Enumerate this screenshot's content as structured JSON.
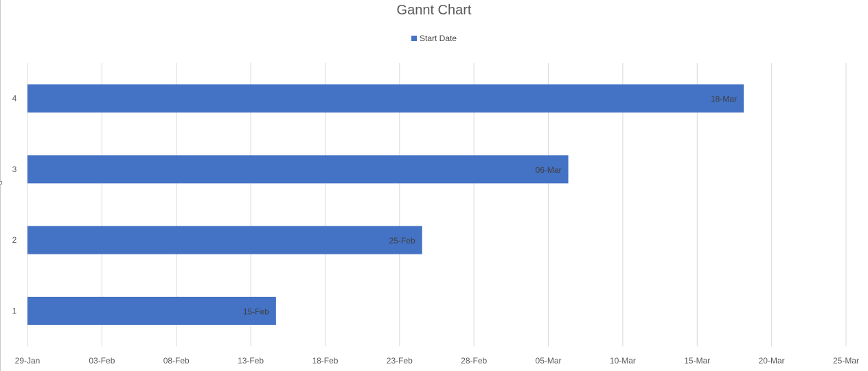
{
  "chart_data": {
    "type": "bar",
    "orientation": "horizontal",
    "title": "Gannt Chart",
    "xlabel": "",
    "ylabel": "",
    "legend": "top",
    "grid": true,
    "categories": [
      "1",
      "2",
      "3",
      "4"
    ],
    "series": [
      {
        "name": "Start Date",
        "color": "#4472C4",
        "values": [
          "2024-02-15",
          "2024-02-25",
          "2024-03-06",
          "2024-03-18"
        ],
        "labels": [
          "15-Feb",
          "25-Feb",
          "06-Mar",
          "18-Mar"
        ]
      }
    ],
    "xlim": [
      "2024-01-29",
      "2024-03-25"
    ],
    "x_ticks": [
      "29-Jan",
      "03-Feb",
      "08-Feb",
      "13-Feb",
      "18-Feb",
      "23-Feb",
      "28-Feb",
      "05-Mar",
      "10-Mar",
      "15-Mar",
      "20-Mar",
      "25-Mar"
    ]
  }
}
